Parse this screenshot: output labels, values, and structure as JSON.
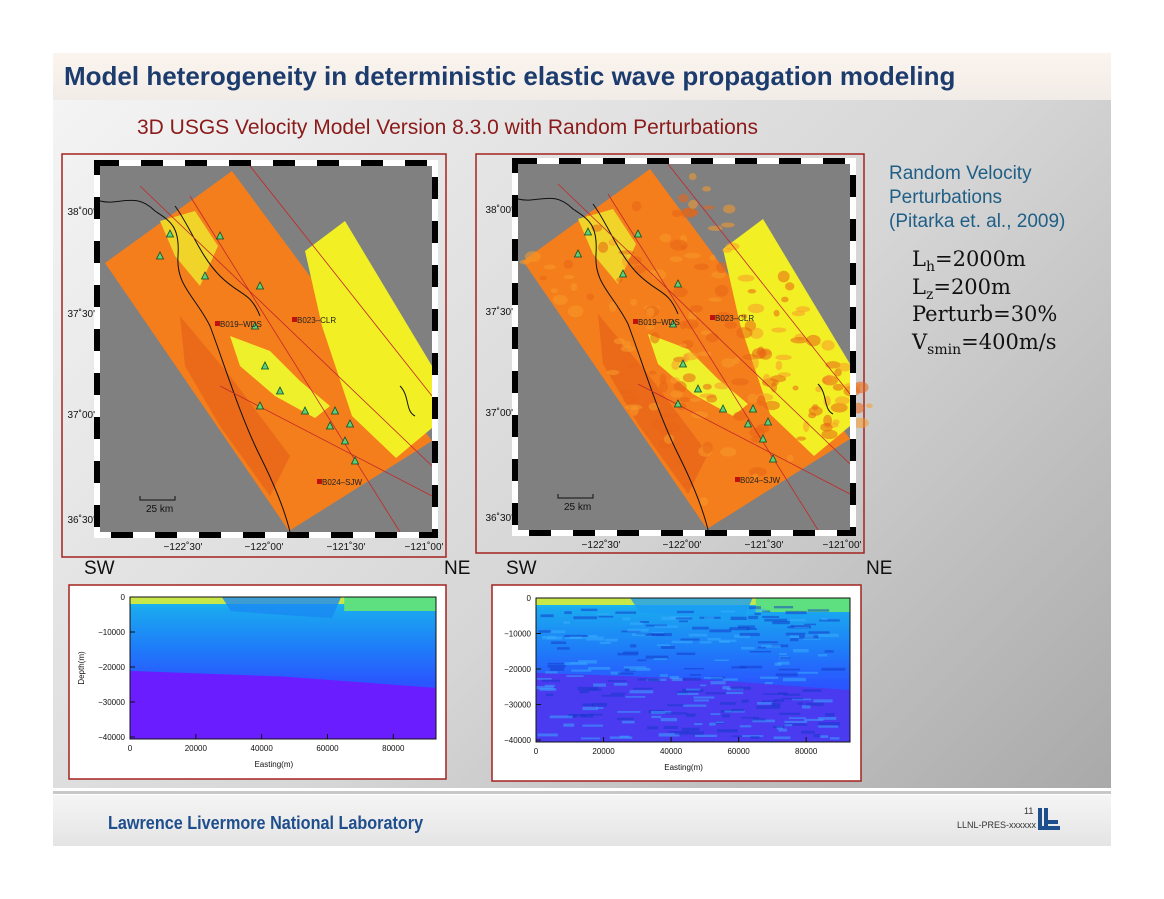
{
  "header": {
    "title": "Model heterogeneity in deterministic elastic wave propagation modeling"
  },
  "subtitle": "3D USGS Velocity Model Version 8.3.0 with Random Perturbations",
  "maps": {
    "lat_labels": [
      "38˚00'",
      "37˚30'",
      "37˚00'",
      "36˚30'"
    ],
    "lon_labels": [
      "−122˚30'",
      "−122˚00'",
      "−121˚30'",
      "−121˚00'"
    ],
    "stations": [
      "B019–WDS",
      "B023–CLR",
      "B024–SJW"
    ],
    "scale_bar": "25 km"
  },
  "sections": {
    "left_label": "SW",
    "right_label": "NE",
    "y_label": "Depth(m)",
    "x_label": "Easting(m)",
    "y_ticks": [
      "0",
      "−10000",
      "−20000",
      "−30000",
      "−40000"
    ],
    "x_ticks": [
      "0",
      "20000",
      "40000",
      "60000",
      "80000"
    ]
  },
  "side_note": {
    "lines": [
      "Random Velocity",
      "Perturbations",
      "(Pitarka et. al., 2009)"
    ],
    "parameters": [
      {
        "symbol": "L",
        "subscript": "h",
        "value": "=2000m"
      },
      {
        "symbol": "L",
        "subscript": "z",
        "value": "=200m"
      },
      {
        "symbol": "Perturb=30%"
      },
      {
        "symbol": "V",
        "subscript": "smin",
        "value": "=400m/s"
      }
    ]
  },
  "footer": {
    "organization": "Lawrence Livermore National Laboratory",
    "page": "11",
    "doc_id": "LLNL-PRES-xxxxxx"
  }
}
